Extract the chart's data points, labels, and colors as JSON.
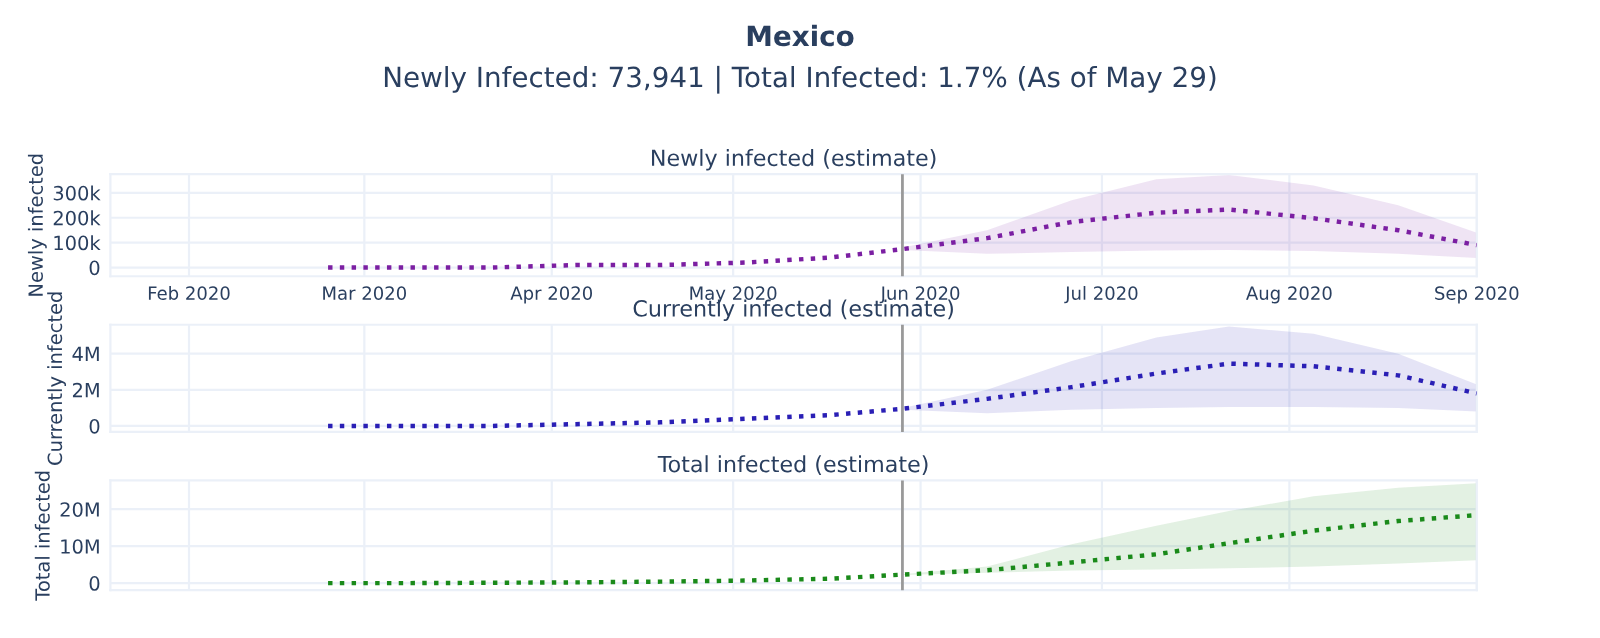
{
  "chart_data": [
    {
      "type": "line",
      "title": "Newly infected (estimate)",
      "ylabel": "Newly infected",
      "annotations": [
        "Mexico",
        "Newly Infected: 73,941 | Total Infected: 1.7% (As of May 29)"
      ],
      "x": [
        "2020-02-24",
        "2020-03-08",
        "2020-03-22",
        "2020-04-05",
        "2020-04-19",
        "2020-05-03",
        "2020-05-17",
        "2020-05-29",
        "2020-06-12",
        "2020-06-26",
        "2020-07-10",
        "2020-07-22",
        "2020-08-05",
        "2020-08-19",
        "2020-09-01"
      ],
      "series": [
        {
          "color": "#7b1fa2",
          "values": [
            0,
            0,
            0,
            10000,
            10000,
            20000,
            40000,
            74000,
            118000,
            183000,
            220000,
            233000,
            198000,
            150000,
            90000
          ],
          "lower": [
            null,
            null,
            null,
            null,
            null,
            null,
            null,
            70000,
            55000,
            62000,
            68000,
            70000,
            66000,
            55000,
            38000
          ],
          "upper": [
            null,
            null,
            null,
            null,
            null,
            null,
            null,
            80000,
            150000,
            270000,
            355000,
            372000,
            330000,
            250000,
            140000
          ]
        }
      ],
      "xlim": [
        "2020-01-19",
        "2020-09-01"
      ],
      "xticks": [
        {
          "value": "2020-02-01",
          "label": "Feb 2020"
        },
        {
          "value": "2020-03-01",
          "label": "Mar 2020"
        },
        {
          "value": "2020-04-01",
          "label": "Apr 2020"
        },
        {
          "value": "2020-05-01",
          "label": "May 2020"
        },
        {
          "value": "2020-06-01",
          "label": "Jun 2020"
        },
        {
          "value": "2020-07-01",
          "label": "Jul 2020"
        },
        {
          "value": "2020-08-01",
          "label": "Aug 2020"
        },
        {
          "value": "2020-09-01",
          "label": "Sep 2020"
        }
      ],
      "ylim": [
        -35000,
        375000
      ],
      "yticks": [
        0,
        {
          "value": 100000,
          "label": "100k"
        },
        {
          "value": 200000,
          "label": "200k"
        },
        {
          "value": 300000,
          "label": "300k"
        }
      ],
      "ref_lines": [
        {
          "axis": "x",
          "value": "2020-05-29",
          "color": "#999999"
        }
      ],
      "grid": true,
      "legend": false,
      "marker": "none",
      "line_style": "dotted"
    },
    {
      "type": "line",
      "title": "Currently infected (estimate)",
      "ylabel": "Currently infected",
      "x": [
        "2020-02-24",
        "2020-03-08",
        "2020-03-22",
        "2020-04-05",
        "2020-04-19",
        "2020-05-03",
        "2020-05-17",
        "2020-05-29",
        "2020-06-12",
        "2020-06-26",
        "2020-07-10",
        "2020-07-22",
        "2020-08-05",
        "2020-08-19",
        "2020-09-01"
      ],
      "series": [
        {
          "color": "#2a1fb5",
          "values": [
            0,
            0,
            0,
            100000,
            200000,
            400000,
            600000,
            950000,
            1500000,
            2150000,
            2900000,
            3450000,
            3300000,
            2800000,
            1800000
          ],
          "lower": [
            null,
            null,
            null,
            null,
            null,
            null,
            null,
            900000,
            700000,
            900000,
            1000000,
            1050000,
            1050000,
            1000000,
            800000
          ],
          "upper": [
            null,
            null,
            null,
            null,
            null,
            null,
            null,
            1000000,
            2000000,
            3600000,
            4900000,
            5500000,
            5100000,
            4000000,
            2300000
          ]
        }
      ],
      "xlim": [
        "2020-01-19",
        "2020-09-01"
      ],
      "xticks": [
        {
          "value": "2020-02-01",
          "label": null
        },
        {
          "value": "2020-03-01",
          "label": null
        },
        {
          "value": "2020-04-01",
          "label": null
        },
        {
          "value": "2020-05-01",
          "label": null
        },
        {
          "value": "2020-06-01",
          "label": null
        },
        {
          "value": "2020-07-01",
          "label": null
        },
        {
          "value": "2020-08-01",
          "label": null
        },
        {
          "value": "2020-09-01",
          "label": null
        }
      ],
      "ylim": [
        -330000,
        5600000
      ],
      "yticks": [
        0,
        {
          "value": 2000000,
          "label": "2M"
        },
        {
          "value": 4000000,
          "label": "4M"
        }
      ],
      "ref_lines": [
        {
          "axis": "x",
          "value": "2020-05-29",
          "color": "#999999"
        }
      ],
      "tick_labels": "y",
      "grid": true,
      "legend": false,
      "marker": "none",
      "line_style": "dotted"
    },
    {
      "type": "line",
      "title": "Total infected (estimate)",
      "ylabel": "Total infected",
      "x": [
        "2020-02-24",
        "2020-03-08",
        "2020-03-22",
        "2020-04-05",
        "2020-04-19",
        "2020-05-03",
        "2020-05-17",
        "2020-05-29",
        "2020-06-12",
        "2020-06-26",
        "2020-07-10",
        "2020-07-22",
        "2020-08-05",
        "2020-08-19",
        "2020-09-01"
      ],
      "series": [
        {
          "color": "#1a8a1a",
          "values": [
            0,
            0,
            100000,
            200000,
            400000,
            700000,
            1200000,
            2300000,
            3500000,
            5600000,
            7800000,
            10800000,
            14200000,
            16800000,
            18400000
          ],
          "lower": [
            null,
            null,
            null,
            null,
            null,
            null,
            null,
            2200000,
            2800000,
            3400000,
            3700000,
            4000000,
            4500000,
            5300000,
            6200000
          ],
          "upper": [
            null,
            null,
            null,
            null,
            null,
            null,
            null,
            2400000,
            4500000,
            10500000,
            15500000,
            19500000,
            23500000,
            25800000,
            27000000
          ]
        }
      ],
      "xlim": [
        "2020-01-19",
        "2020-09-01"
      ],
      "xticks": [
        {
          "value": "2020-02-01",
          "label": null
        },
        {
          "value": "2020-03-01",
          "label": null
        },
        {
          "value": "2020-04-01",
          "label": null
        },
        {
          "value": "2020-05-01",
          "label": null
        },
        {
          "value": "2020-06-01",
          "label": null
        },
        {
          "value": "2020-07-01",
          "label": null
        },
        {
          "value": "2020-08-01",
          "label": null
        },
        {
          "value": "2020-09-01",
          "label": null
        }
      ],
      "ylim": [
        -1900000,
        27800000
      ],
      "yticks": [
        0,
        {
          "value": 10000000,
          "label": "10M"
        },
        {
          "value": 20000000,
          "label": "20M"
        }
      ],
      "ref_lines": [
        {
          "axis": "x",
          "value": "2020-05-29",
          "color": "#999999"
        }
      ],
      "tick_labels": "y",
      "grid": true,
      "legend": false,
      "marker": "none",
      "line_style": "dotted"
    }
  ]
}
